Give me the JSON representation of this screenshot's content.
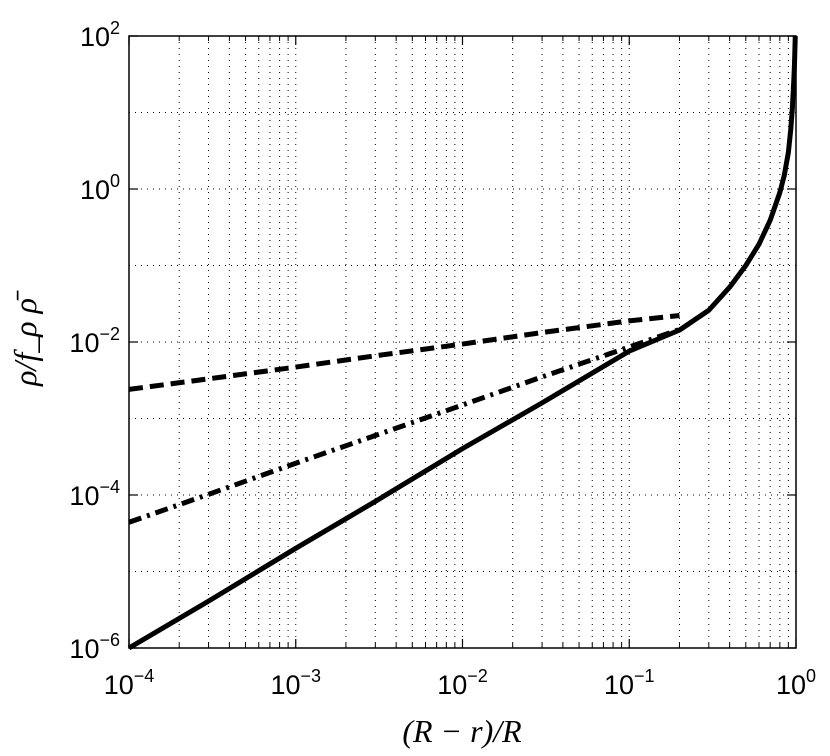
{
  "chart_data": {
    "type": "line",
    "title": "",
    "xlabel": "(R − r)/R",
    "ylabel": "ρ/f_ρ ρ̄",
    "x_scale": "log",
    "y_scale": "log",
    "xlim": [
      0.0001,
      1
    ],
    "ylim": [
      1e-06,
      100
    ],
    "grid": true,
    "legend": "none",
    "x_ticks": [
      {
        "value": 0.0001,
        "base": "10",
        "exp": "−4"
      },
      {
        "value": 0.001,
        "base": "10",
        "exp": "−3"
      },
      {
        "value": 0.01,
        "base": "10",
        "exp": "−2"
      },
      {
        "value": 0.1,
        "base": "10",
        "exp": "−1"
      },
      {
        "value": 1,
        "base": "10",
        "exp": "0"
      }
    ],
    "y_ticks": [
      {
        "value": 1e-06,
        "base": "10",
        "exp": "−6"
      },
      {
        "value": 0.0001,
        "base": "10",
        "exp": "−4"
      },
      {
        "value": 0.01,
        "base": "10",
        "exp": "−2"
      },
      {
        "value": 1,
        "base": "10",
        "exp": "0"
      },
      {
        "value": 100,
        "base": "10",
        "exp": "2"
      }
    ],
    "series": [
      {
        "style": "dashed",
        "color": "#000000",
        "x": [
          0.0001,
          0.0003,
          0.001,
          0.003,
          0.01,
          0.03,
          0.1,
          0.2
        ],
        "y": [
          0.0024,
          0.0033,
          0.0047,
          0.0066,
          0.0094,
          0.0133,
          0.0189,
          0.0222
        ]
      },
      {
        "style": "dashdot",
        "color": "#000000",
        "x": [
          0.0001,
          0.0003,
          0.001,
          0.003,
          0.01,
          0.03,
          0.1,
          0.2
        ],
        "y": [
          4.4e-05,
          0.000102,
          0.00026,
          0.0006,
          0.0015,
          0.0035,
          0.0086,
          0.0146
        ]
      },
      {
        "style": "solid",
        "color": "#000000",
        "x": [
          0.0001,
          0.0003,
          0.001,
          0.003,
          0.01,
          0.03,
          0.1,
          0.2,
          0.3,
          0.4,
          0.5,
          0.6,
          0.7,
          0.8,
          0.85,
          0.9,
          0.93,
          0.95,
          0.97,
          0.98,
          0.99
        ],
        "y": [
          1e-06,
          4.1e-06,
          2.01e-05,
          8.24e-05,
          0.000404,
          0.0016,
          0.0076,
          0.0143,
          0.026,
          0.052,
          0.1,
          0.19,
          0.39,
          0.9,
          1.5,
          3.0,
          6.0,
          11,
          26,
          45,
          100
        ]
      }
    ]
  }
}
